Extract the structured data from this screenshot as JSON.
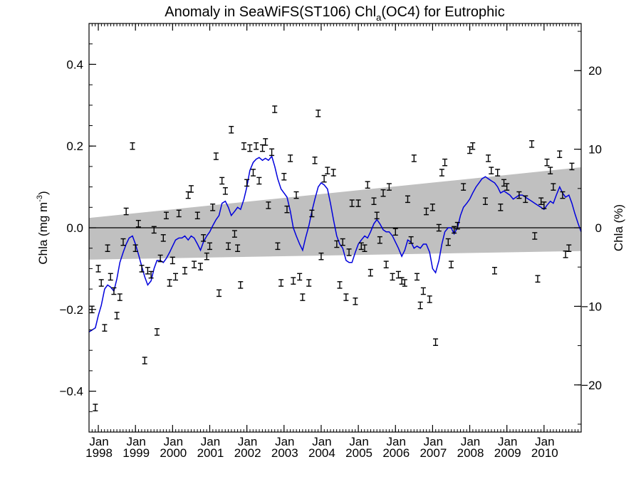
{
  "chart_data": {
    "type": "line",
    "title_prefix": "Anomaly in SeaWiFS(ST106) Chl",
    "title_sub": "a",
    "title_suffix": "(OC4) for Eutrophic",
    "ylabel_left_main": "Chla (mg m",
    "ylabel_left_sup": "-3",
    "ylabel_left_end": ")",
    "ylabel_right": "Chla (%)",
    "xlim": [
      1997.75,
      2011.0
    ],
    "ylim": [
      -0.5,
      0.5
    ],
    "y2lim": [
      -26,
      26
    ],
    "yticks_left": [
      {
        "value": -0.4,
        "label": "−0.4"
      },
      {
        "value": -0.2,
        "label": "−0.2"
      },
      {
        "value": 0.0,
        "label": "0.0"
      },
      {
        "value": 0.2,
        "label": "0.2"
      },
      {
        "value": 0.4,
        "label": "0.4"
      }
    ],
    "yticks_right": [
      {
        "value": -20,
        "label": "−20"
      },
      {
        "value": -10,
        "label": "−10"
      },
      {
        "value": 0,
        "label": "0"
      },
      {
        "value": 10,
        "label": "10"
      },
      {
        "value": 20,
        "label": "20"
      }
    ],
    "xticks": [
      {
        "value": 1998.0,
        "month": "Jan",
        "year": "1998"
      },
      {
        "value": 1999.0,
        "month": "Jan",
        "year": "1999"
      },
      {
        "value": 2000.0,
        "month": "Jan",
        "year": "2000"
      },
      {
        "value": 2001.0,
        "month": "Jan",
        "year": "2001"
      },
      {
        "value": 2002.0,
        "month": "Jan",
        "year": "2002"
      },
      {
        "value": 2003.0,
        "month": "Jan",
        "year": "2003"
      },
      {
        "value": 2004.0,
        "month": "Jan",
        "year": "2004"
      },
      {
        "value": 2005.0,
        "month": "Jan",
        "year": "2005"
      },
      {
        "value": 2006.0,
        "month": "Jan",
        "year": "2006"
      },
      {
        "value": 2007.0,
        "month": "Jan",
        "year": "2007"
      },
      {
        "value": 2008.0,
        "month": "Jan",
        "year": "2008"
      },
      {
        "value": 2009.0,
        "month": "Jan",
        "year": "2009"
      },
      {
        "value": 2010.0,
        "month": "Jan",
        "year": "2010"
      }
    ],
    "zero_line": 0.0,
    "confidence_band": {
      "upper": [
        [
          1997.75,
          0.024
        ],
        [
          2011.0,
          0.148
        ]
      ],
      "lower": [
        [
          1997.75,
          -0.078
        ],
        [
          2011.0,
          -0.057
        ]
      ],
      "color": "#c0c0c0"
    },
    "smoothed_series": {
      "color": "#0000dd",
      "points": [
        [
          1997.75,
          -0.255
        ],
        [
          1997.92,
          -0.245
        ],
        [
          1998.0,
          -0.215
        ],
        [
          1998.08,
          -0.19
        ],
        [
          1998.17,
          -0.15
        ],
        [
          1998.25,
          -0.14
        ],
        [
          1998.33,
          -0.145
        ],
        [
          1998.42,
          -0.155
        ],
        [
          1998.5,
          -0.125
        ],
        [
          1998.58,
          -0.085
        ],
        [
          1998.67,
          -0.06
        ],
        [
          1998.75,
          -0.04
        ],
        [
          1998.83,
          -0.025
        ],
        [
          1998.92,
          -0.02
        ],
        [
          1999.0,
          -0.04
        ],
        [
          1999.08,
          -0.065
        ],
        [
          1999.17,
          -0.095
        ],
        [
          1999.25,
          -0.12
        ],
        [
          1999.33,
          -0.14
        ],
        [
          1999.42,
          -0.13
        ],
        [
          1999.5,
          -0.1
        ],
        [
          1999.58,
          -0.08
        ],
        [
          1999.67,
          -0.08
        ],
        [
          1999.75,
          -0.085
        ],
        [
          1999.83,
          -0.075
        ],
        [
          1999.92,
          -0.06
        ],
        [
          2000.0,
          -0.045
        ],
        [
          2000.08,
          -0.03
        ],
        [
          2000.17,
          -0.025
        ],
        [
          2000.25,
          -0.025
        ],
        [
          2000.33,
          -0.02
        ],
        [
          2000.42,
          -0.03
        ],
        [
          2000.5,
          -0.02
        ],
        [
          2000.58,
          -0.025
        ],
        [
          2000.67,
          -0.04
        ],
        [
          2000.75,
          -0.055
        ],
        [
          2000.83,
          -0.035
        ],
        [
          2000.92,
          -0.02
        ],
        [
          2001.0,
          -0.01
        ],
        [
          2001.08,
          0.005
        ],
        [
          2001.17,
          0.02
        ],
        [
          2001.25,
          0.03
        ],
        [
          2001.33,
          0.06
        ],
        [
          2001.42,
          0.065
        ],
        [
          2001.5,
          0.05
        ],
        [
          2001.58,
          0.03
        ],
        [
          2001.67,
          0.04
        ],
        [
          2001.75,
          0.05
        ],
        [
          2001.83,
          0.045
        ],
        [
          2001.92,
          0.07
        ],
        [
          2002.0,
          0.1
        ],
        [
          2002.08,
          0.14
        ],
        [
          2002.17,
          0.16
        ],
        [
          2002.25,
          0.168
        ],
        [
          2002.33,
          0.172
        ],
        [
          2002.42,
          0.165
        ],
        [
          2002.5,
          0.17
        ],
        [
          2002.58,
          0.165
        ],
        [
          2002.67,
          0.175
        ],
        [
          2002.75,
          0.15
        ],
        [
          2002.83,
          0.12
        ],
        [
          2002.92,
          0.095
        ],
        [
          2003.0,
          0.085
        ],
        [
          2003.08,
          0.075
        ],
        [
          2003.17,
          0.04
        ],
        [
          2003.25,
          0.0
        ],
        [
          2003.33,
          -0.02
        ],
        [
          2003.42,
          -0.04
        ],
        [
          2003.5,
          -0.055
        ],
        [
          2003.58,
          -0.025
        ],
        [
          2003.67,
          0.005
        ],
        [
          2003.75,
          0.04
        ],
        [
          2003.83,
          0.07
        ],
        [
          2003.92,
          0.1
        ],
        [
          2004.0,
          0.11
        ],
        [
          2004.08,
          0.105
        ],
        [
          2004.17,
          0.095
        ],
        [
          2004.25,
          0.06
        ],
        [
          2004.33,
          0.02
        ],
        [
          2004.42,
          -0.02
        ],
        [
          2004.5,
          -0.04
        ],
        [
          2004.58,
          -0.05
        ],
        [
          2004.67,
          -0.08
        ],
        [
          2004.75,
          -0.085
        ],
        [
          2004.83,
          -0.085
        ],
        [
          2004.92,
          -0.06
        ],
        [
          2005.0,
          -0.04
        ],
        [
          2005.08,
          -0.03
        ],
        [
          2005.17,
          -0.02
        ],
        [
          2005.25,
          -0.025
        ],
        [
          2005.33,
          -0.01
        ],
        [
          2005.42,
          0.01
        ],
        [
          2005.5,
          0.02
        ],
        [
          2005.58,
          0.01
        ],
        [
          2005.67,
          -0.005
        ],
        [
          2005.75,
          -0.01
        ],
        [
          2005.83,
          -0.01
        ],
        [
          2005.92,
          -0.02
        ],
        [
          2006.0,
          -0.035
        ],
        [
          2006.08,
          -0.05
        ],
        [
          2006.17,
          -0.07
        ],
        [
          2006.25,
          -0.055
        ],
        [
          2006.33,
          -0.03
        ],
        [
          2006.42,
          -0.035
        ],
        [
          2006.5,
          -0.05
        ],
        [
          2006.58,
          -0.045
        ],
        [
          2006.67,
          -0.05
        ],
        [
          2006.75,
          -0.04
        ],
        [
          2006.83,
          -0.04
        ],
        [
          2006.92,
          -0.06
        ],
        [
          2007.0,
          -0.1
        ],
        [
          2007.08,
          -0.11
        ],
        [
          2007.17,
          -0.08
        ],
        [
          2007.25,
          -0.04
        ],
        [
          2007.33,
          -0.01
        ],
        [
          2007.42,
          0.0
        ],
        [
          2007.5,
          0.0
        ],
        [
          2007.58,
          -0.015
        ],
        [
          2007.67,
          0.0
        ],
        [
          2007.75,
          0.03
        ],
        [
          2007.83,
          0.05
        ],
        [
          2007.92,
          0.06
        ],
        [
          2008.0,
          0.07
        ],
        [
          2008.08,
          0.085
        ],
        [
          2008.17,
          0.1
        ],
        [
          2008.25,
          0.11
        ],
        [
          2008.33,
          0.12
        ],
        [
          2008.42,
          0.125
        ],
        [
          2008.5,
          0.12
        ],
        [
          2008.58,
          0.115
        ],
        [
          2008.67,
          0.11
        ],
        [
          2008.75,
          0.1
        ],
        [
          2008.83,
          0.085
        ],
        [
          2008.92,
          0.09
        ],
        [
          2009.0,
          0.085
        ],
        [
          2009.08,
          0.08
        ],
        [
          2009.17,
          0.07
        ],
        [
          2009.25,
          0.075
        ],
        [
          2009.33,
          0.08
        ],
        [
          2009.42,
          0.08
        ],
        [
          2009.5,
          0.075
        ],
        [
          2009.58,
          0.07
        ],
        [
          2009.67,
          0.065
        ],
        [
          2009.75,
          0.06
        ],
        [
          2009.83,
          0.055
        ],
        [
          2009.92,
          0.05
        ],
        [
          2010.0,
          0.045
        ],
        [
          2010.08,
          0.055
        ],
        [
          2010.17,
          0.065
        ],
        [
          2010.25,
          0.06
        ],
        [
          2010.33,
          0.08
        ],
        [
          2010.42,
          0.1
        ],
        [
          2010.5,
          0.085
        ],
        [
          2010.58,
          0.075
        ],
        [
          2010.67,
          0.08
        ],
        [
          2010.75,
          0.06
        ],
        [
          2010.83,
          0.035
        ],
        [
          2010.92,
          0.01
        ],
        [
          2011.0,
          -0.01
        ]
      ]
    },
    "monthly_anomalies": {
      "color": "#000000",
      "error_half_width": 0.008,
      "points": [
        [
          1997.83,
          -0.2
        ],
        [
          1997.92,
          -0.44
        ],
        [
          1998.0,
          -0.1
        ],
        [
          1998.08,
          -0.135
        ],
        [
          1998.17,
          -0.245
        ],
        [
          1998.25,
          -0.05
        ],
        [
          1998.33,
          -0.12
        ],
        [
          1998.42,
          -0.155
        ],
        [
          1998.5,
          -0.215
        ],
        [
          1998.58,
          -0.17
        ],
        [
          1998.67,
          -0.035
        ],
        [
          1998.75,
          0.04
        ],
        [
          1998.92,
          0.2
        ],
        [
          1999.0,
          -0.05
        ],
        [
          1999.08,
          0.01
        ],
        [
          1999.17,
          -0.1
        ],
        [
          1999.25,
          -0.325
        ],
        [
          1999.33,
          -0.105
        ],
        [
          1999.42,
          -0.115
        ],
        [
          1999.5,
          -0.005
        ],
        [
          1999.58,
          -0.255
        ],
        [
          1999.67,
          -0.075
        ],
        [
          1999.75,
          -0.025
        ],
        [
          1999.83,
          0.03
        ],
        [
          1999.92,
          -0.135
        ],
        [
          2000.0,
          -0.08
        ],
        [
          2000.08,
          -0.12
        ],
        [
          2000.17,
          0.035
        ],
        [
          2000.33,
          -0.105
        ],
        [
          2000.42,
          0.08
        ],
        [
          2000.5,
          0.095
        ],
        [
          2000.58,
          -0.09
        ],
        [
          2000.67,
          0.03
        ],
        [
          2000.75,
          -0.095
        ],
        [
          2000.83,
          -0.025
        ],
        [
          2000.92,
          -0.07
        ],
        [
          2001.0,
          -0.045
        ],
        [
          2001.08,
          0.05
        ],
        [
          2001.17,
          0.175
        ],
        [
          2001.25,
          -0.16
        ],
        [
          2001.33,
          0.115
        ],
        [
          2001.42,
          0.09
        ],
        [
          2001.5,
          -0.045
        ],
        [
          2001.58,
          0.24
        ],
        [
          2001.67,
          -0.015
        ],
        [
          2001.75,
          -0.05
        ],
        [
          2001.83,
          -0.14
        ],
        [
          2001.92,
          0.2
        ],
        [
          2002.0,
          0.11
        ],
        [
          2002.08,
          0.195
        ],
        [
          2002.17,
          0.135
        ],
        [
          2002.25,
          0.2
        ],
        [
          2002.33,
          0.115
        ],
        [
          2002.42,
          0.195
        ],
        [
          2002.5,
          0.21
        ],
        [
          2002.58,
          0.055
        ],
        [
          2002.67,
          0.185
        ],
        [
          2002.75,
          0.29
        ],
        [
          2002.83,
          -0.045
        ],
        [
          2002.92,
          -0.135
        ],
        [
          2003.0,
          0.125
        ],
        [
          2003.08,
          0.045
        ],
        [
          2003.17,
          0.17
        ],
        [
          2003.25,
          -0.13
        ],
        [
          2003.33,
          0.08
        ],
        [
          2003.42,
          -0.12
        ],
        [
          2003.5,
          -0.17
        ],
        [
          2003.67,
          -0.135
        ],
        [
          2003.75,
          0.035
        ],
        [
          2003.83,
          0.165
        ],
        [
          2003.92,
          0.28
        ],
        [
          2004.0,
          -0.07
        ],
        [
          2004.08,
          0.12
        ],
        [
          2004.17,
          0.14
        ],
        [
          2004.33,
          0.135
        ],
        [
          2004.42,
          -0.04
        ],
        [
          2004.5,
          -0.14
        ],
        [
          2004.58,
          -0.035
        ],
        [
          2004.67,
          -0.17
        ],
        [
          2004.75,
          -0.06
        ],
        [
          2004.83,
          0.06
        ],
        [
          2004.92,
          -0.18
        ],
        [
          2005.0,
          0.06
        ],
        [
          2005.08,
          -0.045
        ],
        [
          2005.17,
          -0.05
        ],
        [
          2005.25,
          0.105
        ],
        [
          2005.33,
          -0.11
        ],
        [
          2005.42,
          0.065
        ],
        [
          2005.5,
          0.03
        ],
        [
          2005.58,
          -0.03
        ],
        [
          2005.67,
          0.085
        ],
        [
          2005.75,
          -0.09
        ],
        [
          2005.83,
          0.1
        ],
        [
          2005.92,
          -0.12
        ],
        [
          2006.0,
          -0.01
        ],
        [
          2006.08,
          -0.115
        ],
        [
          2006.17,
          -0.13
        ],
        [
          2006.25,
          -0.135
        ],
        [
          2006.33,
          0.07
        ],
        [
          2006.42,
          -0.03
        ],
        [
          2006.5,
          0.17
        ],
        [
          2006.58,
          -0.12
        ],
        [
          2006.67,
          -0.19
        ],
        [
          2006.75,
          -0.155
        ],
        [
          2006.83,
          0.04
        ],
        [
          2006.92,
          -0.175
        ],
        [
          2007.0,
          0.05
        ],
        [
          2007.08,
          -0.28
        ],
        [
          2007.17,
          0.0
        ],
        [
          2007.25,
          0.135
        ],
        [
          2007.33,
          0.16
        ],
        [
          2007.42,
          -0.035
        ],
        [
          2007.5,
          -0.09
        ],
        [
          2007.58,
          -0.005
        ],
        [
          2007.67,
          0.005
        ],
        [
          2007.83,
          0.1
        ],
        [
          2008.0,
          0.19
        ],
        [
          2008.08,
          0.2
        ],
        [
          2008.42,
          0.065
        ],
        [
          2008.5,
          0.17
        ],
        [
          2008.58,
          0.14
        ],
        [
          2008.67,
          -0.105
        ],
        [
          2008.75,
          0.135
        ],
        [
          2008.83,
          0.05
        ],
        [
          2008.92,
          0.11
        ],
        [
          2009.0,
          0.1
        ],
        [
          2009.33,
          0.08
        ],
        [
          2009.5,
          0.07
        ],
        [
          2009.67,
          0.205
        ],
        [
          2009.75,
          -0.02
        ],
        [
          2009.83,
          -0.125
        ],
        [
          2009.92,
          0.065
        ],
        [
          2010.0,
          0.055
        ],
        [
          2010.08,
          0.16
        ],
        [
          2010.17,
          0.14
        ],
        [
          2010.25,
          0.1
        ],
        [
          2010.42,
          0.18
        ],
        [
          2010.5,
          0.08
        ],
        [
          2010.58,
          -0.065
        ],
        [
          2010.67,
          -0.05
        ],
        [
          2010.75,
          0.15
        ]
      ]
    }
  }
}
